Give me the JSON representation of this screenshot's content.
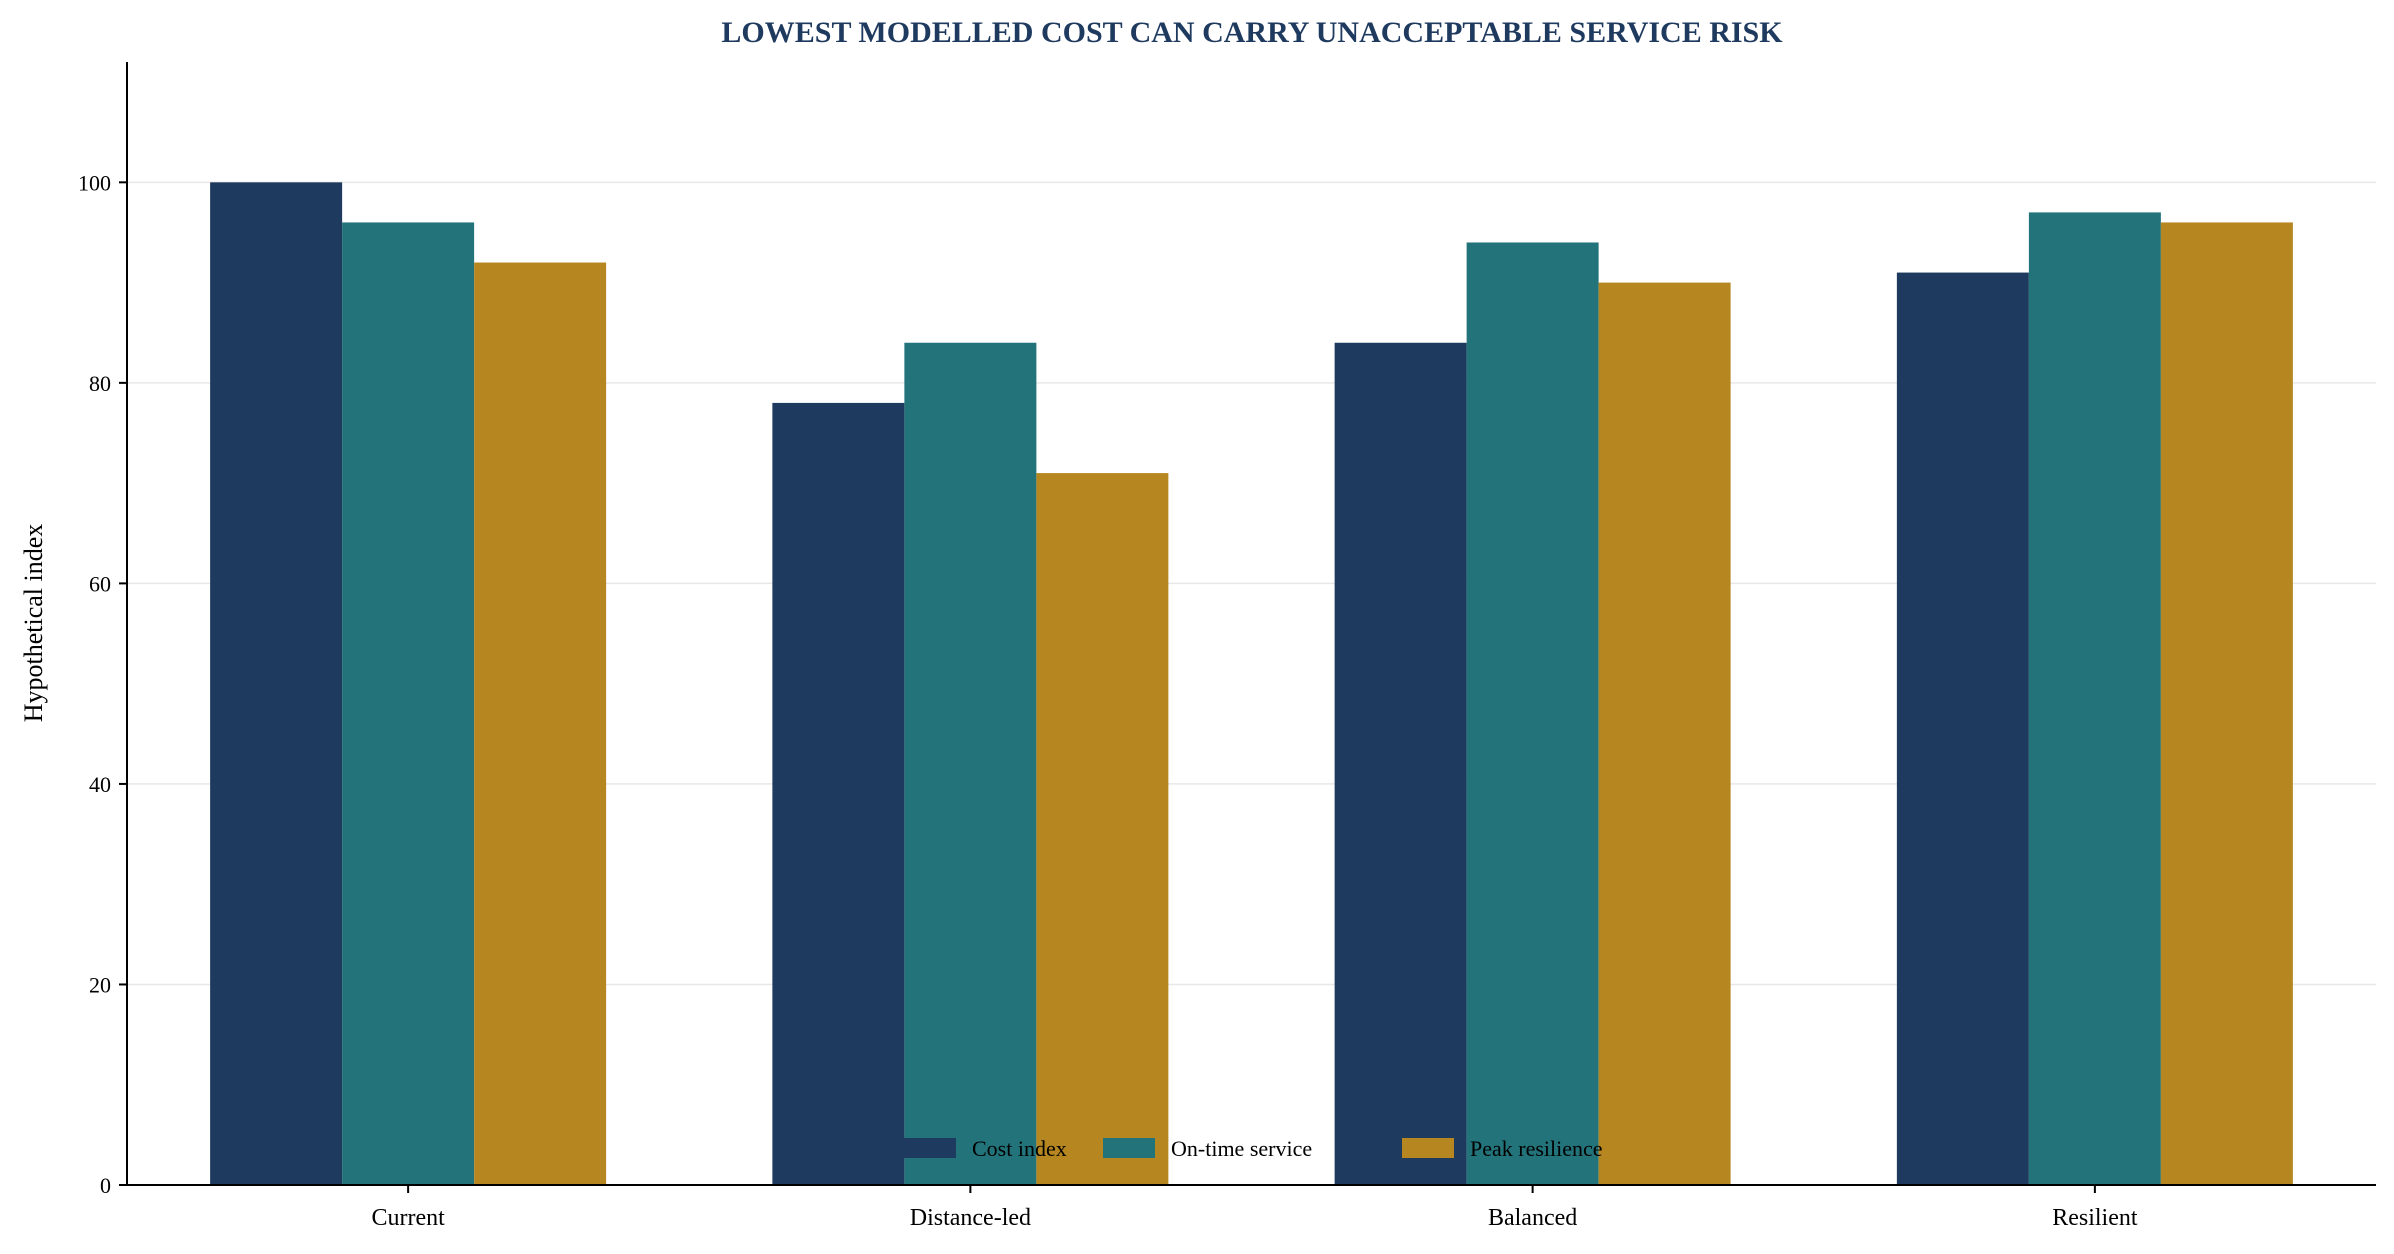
{
  "chart_data": {
    "type": "bar",
    "title": "LOWEST MODELLED COST CAN CARRY UNACCEPTABLE SERVICE RISK",
    "xlabel": "",
    "ylabel": "Hypothetical index",
    "categories": [
      "Current",
      "Distance-led",
      "Balanced",
      "Resilient"
    ],
    "series": [
      {
        "name": "Cost index",
        "color": "#1f3a5f",
        "values": [
          100,
          78,
          84,
          91
        ]
      },
      {
        "name": "On-time service",
        "color": "#23737a",
        "values": [
          96,
          84,
          94,
          97
        ]
      },
      {
        "name": "Peak resilience",
        "color": "#b68620",
        "values": [
          92,
          71,
          90,
          96
        ]
      }
    ],
    "ylim": [
      0,
      112
    ],
    "yticks": [
      0,
      20,
      40,
      60,
      80,
      100
    ],
    "grid": "horizontal",
    "legend": "bottom-center"
  }
}
